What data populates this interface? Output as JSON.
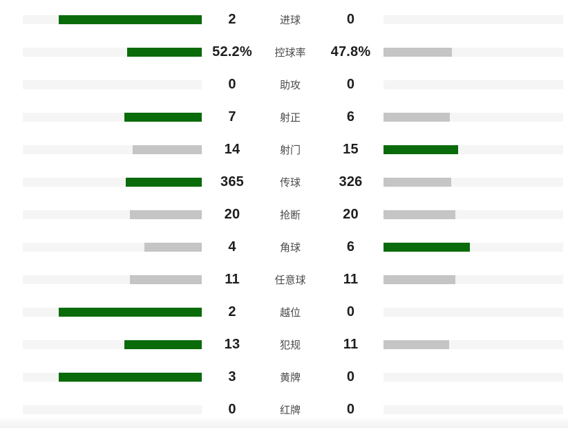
{
  "chart_data": {
    "type": "bar",
    "variant": "head-to-head-match-stats",
    "title": "",
    "legend_position": "none",
    "grid": false,
    "bar_scale_note": "fill percent of track = 80 * value / (home+away); winner side green, loser/tie gray, zero empty",
    "colors": {
      "win": "#0a6b0a",
      "lose": "#c5c5c5",
      "tie": "#c5c5c5",
      "none": "transparent",
      "track": "#f5f5f5",
      "value_text": "#1e1e1e",
      "label_text": "#4a4a4a"
    },
    "categories": [
      "进球",
      "控球率",
      "助攻",
      "射正",
      "射门",
      "传球",
      "抢断",
      "角球",
      "任意球",
      "越位",
      "犯规",
      "黄牌",
      "红牌"
    ],
    "series": [
      {
        "name": "home",
        "values": [
          "2",
          "52.2%",
          "0",
          "7",
          "14",
          "365",
          "20",
          "4",
          "11",
          "2",
          "13",
          "3",
          "0"
        ]
      },
      {
        "name": "away",
        "values": [
          "0",
          "47.8%",
          "0",
          "6",
          "15",
          "326",
          "20",
          "6",
          "11",
          "0",
          "11",
          "0",
          "0"
        ]
      }
    ],
    "rows": [
      {
        "label": "进球",
        "left": {
          "value": "2",
          "fill": 80,
          "state": "win"
        },
        "right": {
          "value": "0",
          "fill": 0,
          "state": "none"
        }
      },
      {
        "label": "控球率",
        "left": {
          "value": "52.2%",
          "fill": 41.8,
          "state": "win"
        },
        "right": {
          "value": "47.8%",
          "fill": 38.2,
          "state": "lose"
        }
      },
      {
        "label": "助攻",
        "left": {
          "value": "0",
          "fill": 0,
          "state": "none"
        },
        "right": {
          "value": "0",
          "fill": 0,
          "state": "none"
        }
      },
      {
        "label": "射正",
        "left": {
          "value": "7",
          "fill": 43.1,
          "state": "win"
        },
        "right": {
          "value": "6",
          "fill": 36.9,
          "state": "lose"
        }
      },
      {
        "label": "射门",
        "left": {
          "value": "14",
          "fill": 38.6,
          "state": "lose"
        },
        "right": {
          "value": "15",
          "fill": 41.4,
          "state": "win"
        }
      },
      {
        "label": "传球",
        "left": {
          "value": "365",
          "fill": 42.3,
          "state": "win"
        },
        "right": {
          "value": "326",
          "fill": 37.7,
          "state": "lose"
        }
      },
      {
        "label": "抢断",
        "left": {
          "value": "20",
          "fill": 40,
          "state": "tie"
        },
        "right": {
          "value": "20",
          "fill": 40,
          "state": "tie"
        }
      },
      {
        "label": "角球",
        "left": {
          "value": "4",
          "fill": 32,
          "state": "lose"
        },
        "right": {
          "value": "6",
          "fill": 48,
          "state": "win"
        }
      },
      {
        "label": "任意球",
        "left": {
          "value": "11",
          "fill": 40,
          "state": "tie"
        },
        "right": {
          "value": "11",
          "fill": 40,
          "state": "tie"
        }
      },
      {
        "label": "越位",
        "left": {
          "value": "2",
          "fill": 80,
          "state": "win"
        },
        "right": {
          "value": "0",
          "fill": 0,
          "state": "none"
        }
      },
      {
        "label": "犯规",
        "left": {
          "value": "13",
          "fill": 43.3,
          "state": "win"
        },
        "right": {
          "value": "11",
          "fill": 36.7,
          "state": "lose"
        }
      },
      {
        "label": "黄牌",
        "left": {
          "value": "3",
          "fill": 80,
          "state": "win"
        },
        "right": {
          "value": "0",
          "fill": 0,
          "state": "none"
        }
      },
      {
        "label": "红牌",
        "left": {
          "value": "0",
          "fill": 0,
          "state": "none"
        },
        "right": {
          "value": "0",
          "fill": 0,
          "state": "none"
        }
      }
    ]
  }
}
